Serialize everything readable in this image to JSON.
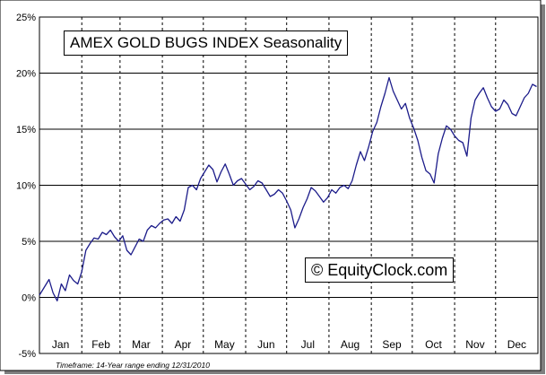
{
  "chart_data": {
    "type": "line",
    "title": "AMEX GOLD BUGS INDEX Seasonality",
    "watermark": "© EquityClock.com",
    "footnote": "Timeframe: 14-Year range ending 12/31/2010",
    "ylim": [
      -5,
      25
    ],
    "yticks": [
      -5,
      0,
      5,
      10,
      15,
      20,
      25
    ],
    "ytick_labels": [
      "-5%",
      "0%",
      "5%",
      "10%",
      "15%",
      "20%",
      "25%"
    ],
    "xlim": [
      0,
      365
    ],
    "months": [
      "Jan",
      "Feb",
      "Mar",
      "Apr",
      "May",
      "Jun",
      "Jul",
      "Aug",
      "Sep",
      "Oct",
      "Nov",
      "Dec"
    ],
    "month_starts": [
      0,
      31,
      59,
      90,
      120,
      151,
      181,
      212,
      243,
      273,
      304,
      334
    ],
    "grid": true,
    "line_color": "#1c1c8a",
    "series": [
      {
        "x": [
          0,
          3,
          7,
          10,
          13,
          16,
          19,
          22,
          25,
          28,
          31,
          34,
          37,
          40,
          43,
          46,
          49,
          52,
          55,
          58,
          61,
          64,
          67,
          70,
          73,
          76,
          79,
          82,
          85,
          88,
          91,
          94,
          97,
          100,
          103,
          106,
          109,
          112,
          115,
          118,
          121,
          124,
          127,
          130,
          133,
          136,
          139,
          142,
          145,
          148,
          151,
          154,
          157,
          160,
          163,
          166,
          169,
          172,
          175,
          178,
          181,
          184,
          187,
          190,
          193,
          196,
          199,
          202,
          205,
          208,
          211,
          214,
          217,
          220,
          223,
          226,
          229,
          232,
          235,
          238,
          241,
          244,
          247,
          250,
          253,
          256,
          259,
          262,
          265,
          268,
          271,
          274,
          277,
          280,
          283,
          286,
          289,
          292,
          295,
          298,
          301,
          304,
          307,
          310,
          313,
          316,
          319,
          322,
          325,
          328,
          331,
          334,
          337,
          340,
          343,
          346,
          349,
          352,
          355,
          358,
          361,
          364
        ],
        "y": [
          0.2,
          0.8,
          1.6,
          0.4,
          -0.3,
          1.2,
          0.6,
          2.0,
          1.5,
          1.2,
          2.3,
          4.2,
          4.8,
          5.3,
          5.2,
          5.8,
          5.6,
          6.0,
          5.4,
          5.0,
          5.5,
          4.2,
          3.8,
          4.5,
          5.2,
          5.0,
          6.0,
          6.4,
          6.2,
          6.6,
          6.9,
          7.0,
          6.6,
          7.2,
          6.8,
          7.8,
          9.8,
          10.0,
          9.6,
          10.6,
          11.2,
          11.8,
          11.4,
          10.3,
          11.2,
          11.9,
          11.0,
          10.0,
          10.4,
          10.6,
          10.1,
          9.6,
          9.9,
          10.4,
          10.2,
          9.6,
          9.0,
          9.2,
          9.6,
          9.3,
          8.6,
          7.8,
          6.2,
          7.0,
          8.0,
          8.8,
          9.8,
          9.5,
          9.0,
          8.5,
          8.9,
          9.6,
          9.3,
          9.8,
          10.0,
          9.7,
          10.4,
          11.8,
          13.0,
          12.2,
          13.4,
          14.8,
          15.6,
          17.0,
          18.2,
          19.6,
          18.4,
          17.6,
          16.8,
          17.3,
          16.0,
          15.1,
          14.0,
          12.5,
          11.3,
          11.0,
          10.2,
          12.8,
          14.2,
          15.3,
          15.0,
          14.4,
          14.0,
          13.8,
          12.6,
          16.0,
          17.6,
          18.2,
          18.7,
          17.8,
          17.0,
          16.6,
          16.8,
          17.6,
          17.2,
          16.4,
          16.2,
          17.0,
          17.8,
          18.2,
          19.0,
          18.8
        ]
      }
    ]
  }
}
